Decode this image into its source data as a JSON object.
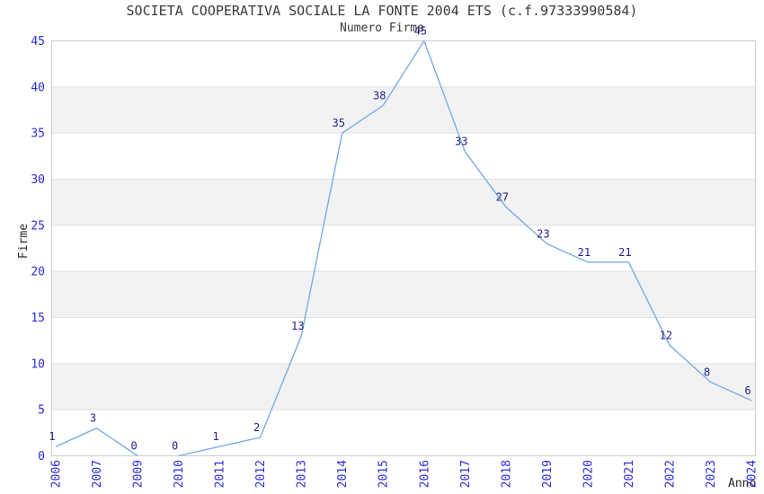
{
  "chart_data": {
    "type": "line",
    "title": "SOCIETA COOPERATIVA SOCIALE LA FONTE 2004 ETS (c.f.97333990584)",
    "subtitle": "Numero Firme",
    "xlabel": "Anno",
    "ylabel": "Firme",
    "categories": [
      "2006",
      "2007",
      "2009",
      "2010",
      "2011",
      "2012",
      "2013",
      "2014",
      "2015",
      "2016",
      "2017",
      "2018",
      "2019",
      "2020",
      "2021",
      "2022",
      "2023",
      "2024"
    ],
    "values": [
      1,
      3,
      0,
      0,
      1,
      2,
      13,
      35,
      38,
      45,
      33,
      27,
      23,
      21,
      21,
      12,
      8,
      6
    ],
    "gap_between": [
      "2009",
      "2010"
    ],
    "ylim": [
      0,
      45
    ],
    "yticks": [
      0,
      5,
      10,
      15,
      20,
      25,
      30,
      35,
      40,
      45
    ],
    "grid": "alternating horizontal bands",
    "legend": "none",
    "colors": {
      "line": "#7aaee3",
      "tick_label": "#2b2bdd",
      "point_label": "#1f1f8c",
      "band": "#f2f2f2",
      "gridline": "#e0e0e0",
      "frame": "#cccccc",
      "heading_text": "#3a3a3a"
    }
  }
}
